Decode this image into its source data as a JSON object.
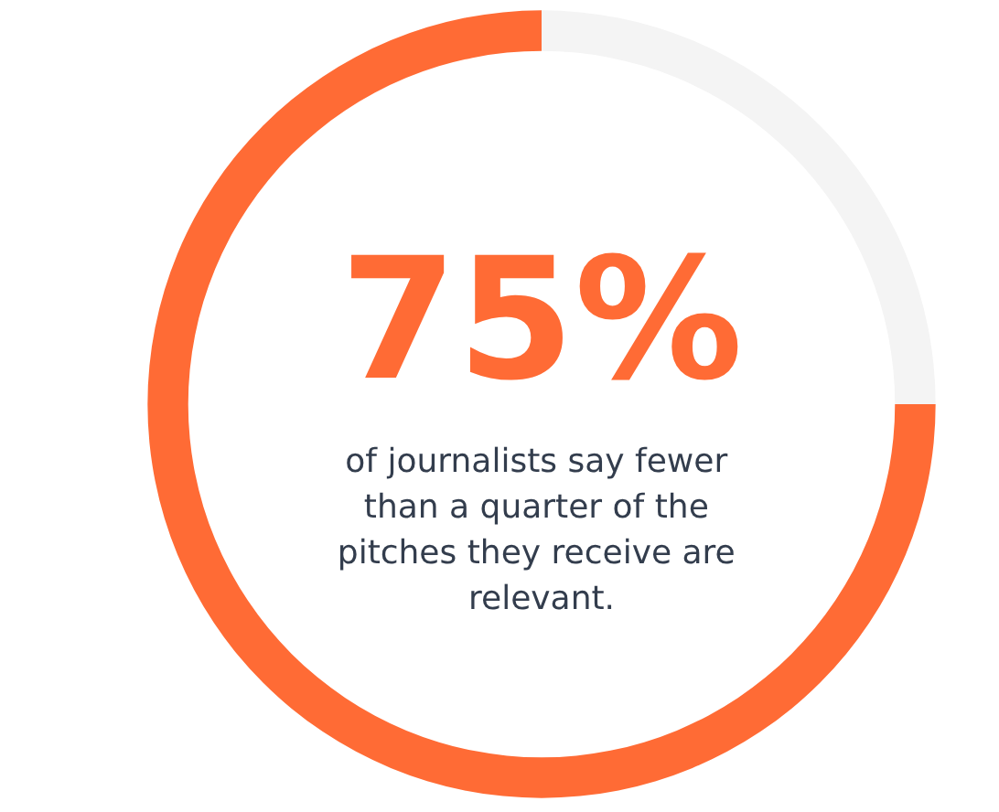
{
  "chart_data": {
    "type": "donut",
    "title": "75%",
    "annotations": [
      "of journalists say fewer than a quarter of the pitches they receive are relevant."
    ],
    "categories": [
      null,
      null
    ],
    "values": [
      75,
      25
    ],
    "colors": [
      "#ff6b35",
      "#f4f4f4"
    ]
  }
}
